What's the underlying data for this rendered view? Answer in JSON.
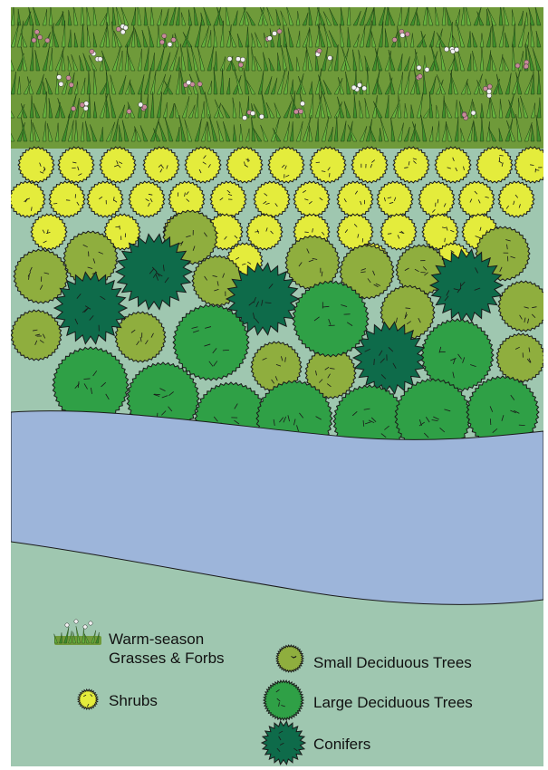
{
  "colors": {
    "background": "#9fc7b0",
    "grass_band": "#6f9a3a",
    "grass_blade": "#3f8f2c",
    "grass_blade_light": "#66b23f",
    "flower_pink": "#c98a9b",
    "flower_white": "#f2f2f2",
    "shrub": "#e4ec3c",
    "small_tree": "#8fae3e",
    "large_tree": "#2fa046",
    "conifer": "#0e6b4a",
    "river": "#9db5da",
    "outline": "#1a1a1a"
  },
  "legend": {
    "grasses": "Warm-season\nGrasses & Forbs",
    "grasses_line1": "Warm-season",
    "grasses_line2": "Grasses & Forbs",
    "shrubs": "Shrubs",
    "small_trees": "Small Deciduous Trees",
    "large_trees": "Large Deciduous Trees",
    "conifers": "Conifers"
  },
  "icons": {
    "grass": "grass-forbs-icon",
    "shrub": "shrub-icon",
    "small_tree": "small-tree-icon",
    "large_tree": "large-tree-icon",
    "conifer": "conifer-icon"
  }
}
